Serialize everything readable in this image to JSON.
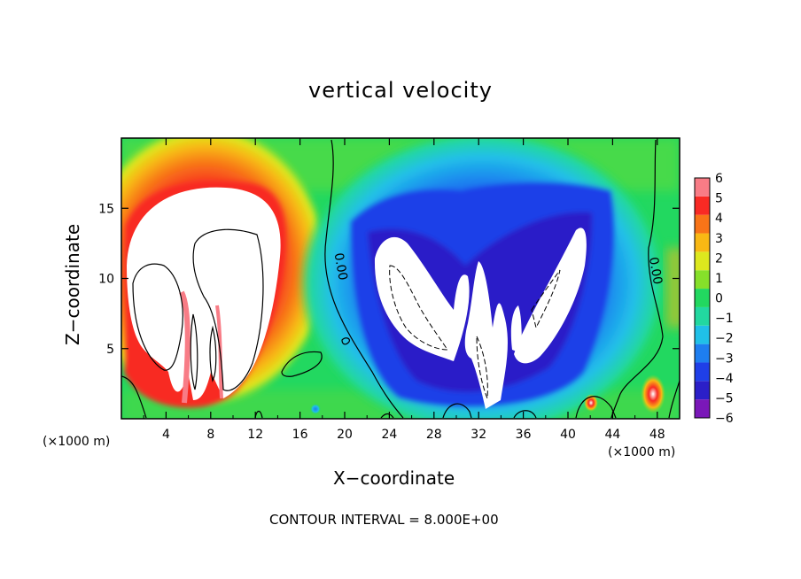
{
  "chart_data": {
    "type": "heatmap",
    "title": "vertical velocity",
    "xlabel": "X−coordinate",
    "ylabel": "Z−coordinate",
    "x_unit_left": "(×1000 m)",
    "x_unit_right": "(×1000 m)",
    "footnote": "CONTOUR INTERVAL = 8.000E+00",
    "xlim": [
      0,
      50
    ],
    "ylim": [
      0,
      20
    ],
    "x_ticks": [
      4,
      8,
      12,
      16,
      20,
      24,
      28,
      32,
      36,
      40,
      44,
      48
    ],
    "x_tick_labels": [
      "4",
      "8",
      "12",
      "16",
      "20",
      "24",
      "28",
      "32",
      "36",
      "40",
      "44",
      "48"
    ],
    "y_ticks": [
      5,
      10,
      15
    ],
    "y_tick_labels": [
      "5",
      "10",
      "15"
    ],
    "contour_labels": [
      {
        "text": "0.00",
        "x": 19.3,
        "y": 10.8
      },
      {
        "text": "0.00",
        "x": 47.5,
        "y": 10.5
      }
    ],
    "colorbar": {
      "levels": [
        -6,
        -5,
        -4,
        -3,
        -2,
        -1,
        0,
        1,
        2,
        3,
        4,
        5,
        6
      ],
      "labels": [
        "−6",
        "−5",
        "−4",
        "−3",
        "−2",
        "−1",
        "0",
        "1",
        "2",
        "3",
        "4",
        "5",
        "6"
      ],
      "colors": [
        "#7a17b8",
        "#2b1fc8",
        "#1f3fe8",
        "#1e7ef0",
        "#20c0e8",
        "#22d8a0",
        "#22d860",
        "#86e02a",
        "#dde81e",
        "#f8b814",
        "#f87418",
        "#f82a24",
        "#f87c86"
      ]
    },
    "regions": [
      {
        "sign": "positive",
        "x_range": [
          0,
          15
        ],
        "z_range": [
          1,
          18
        ],
        "peak": "above 6"
      },
      {
        "sign": "negative",
        "x_range": [
          20,
          45
        ],
        "z_range": [
          1,
          17
        ],
        "peak": "below -6"
      }
    ]
  }
}
